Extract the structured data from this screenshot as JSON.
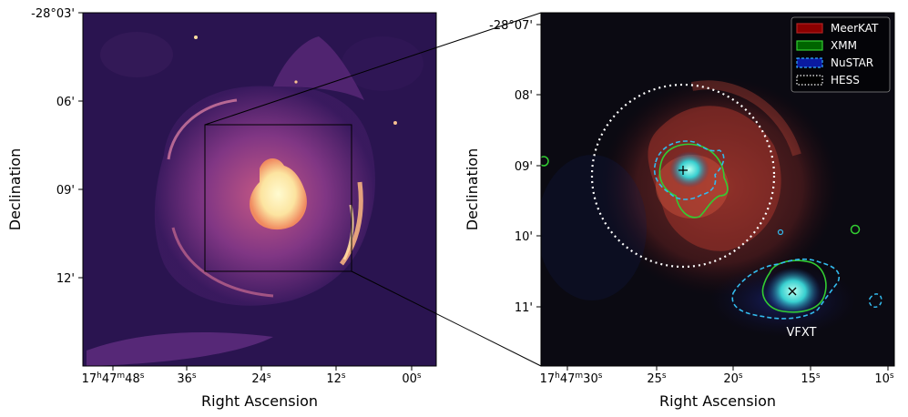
{
  "left_panel": {
    "xlabel": "Right Ascension",
    "ylabel": "Declination",
    "y_ticks": [
      "-28°03'",
      "06'",
      "09'",
      "12'"
    ],
    "x_ticks": [
      {
        "main": "17",
        "sup": "h",
        "main2": "47",
        "sup2": "m",
        "main3": "48",
        "sup3": "s"
      },
      {
        "main": "36",
        "sup": "s"
      },
      {
        "main": "24",
        "sup": "s"
      },
      {
        "main": "12",
        "sup": "s"
      },
      {
        "main": "00",
        "sup": "s"
      }
    ]
  },
  "right_panel": {
    "xlabel": "Right Ascension",
    "ylabel": "Declination",
    "y_ticks": [
      "-28°07'",
      "08'",
      "09'",
      "10'",
      "11'"
    ],
    "x_ticks": [
      {
        "main": "17",
        "sup": "h",
        "main2": "47",
        "sup2": "m",
        "main3": "30",
        "sup3": "s"
      },
      {
        "main": "25",
        "sup": "s"
      },
      {
        "main": "20",
        "sup": "s"
      },
      {
        "main": "15",
        "sup": "s"
      },
      {
        "main": "10",
        "sup": "s"
      }
    ],
    "source_label": "VFXT",
    "legend": [
      {
        "label": "MeerKAT",
        "color": "#8b0000",
        "edge": "#b22222",
        "style": "solid"
      },
      {
        "label": "XMM",
        "color": "#006400",
        "edge": "#32cd32",
        "style": "solid"
      },
      {
        "label": "NuSTAR",
        "color": "#0a1aa0",
        "edge": "#33aaff",
        "style": "dashed"
      },
      {
        "label": "HESS",
        "color": "#000000",
        "edge": "#ffffff",
        "style": "dotted"
      }
    ]
  },
  "colors": {
    "left_background": "#2a1450",
    "right_background": "#0b0a12",
    "meerkat_red": "#c23a2a",
    "xmm_green": "#32cd32",
    "nustar_cyan": "#33bbee",
    "hess_white": "#ffffff"
  }
}
